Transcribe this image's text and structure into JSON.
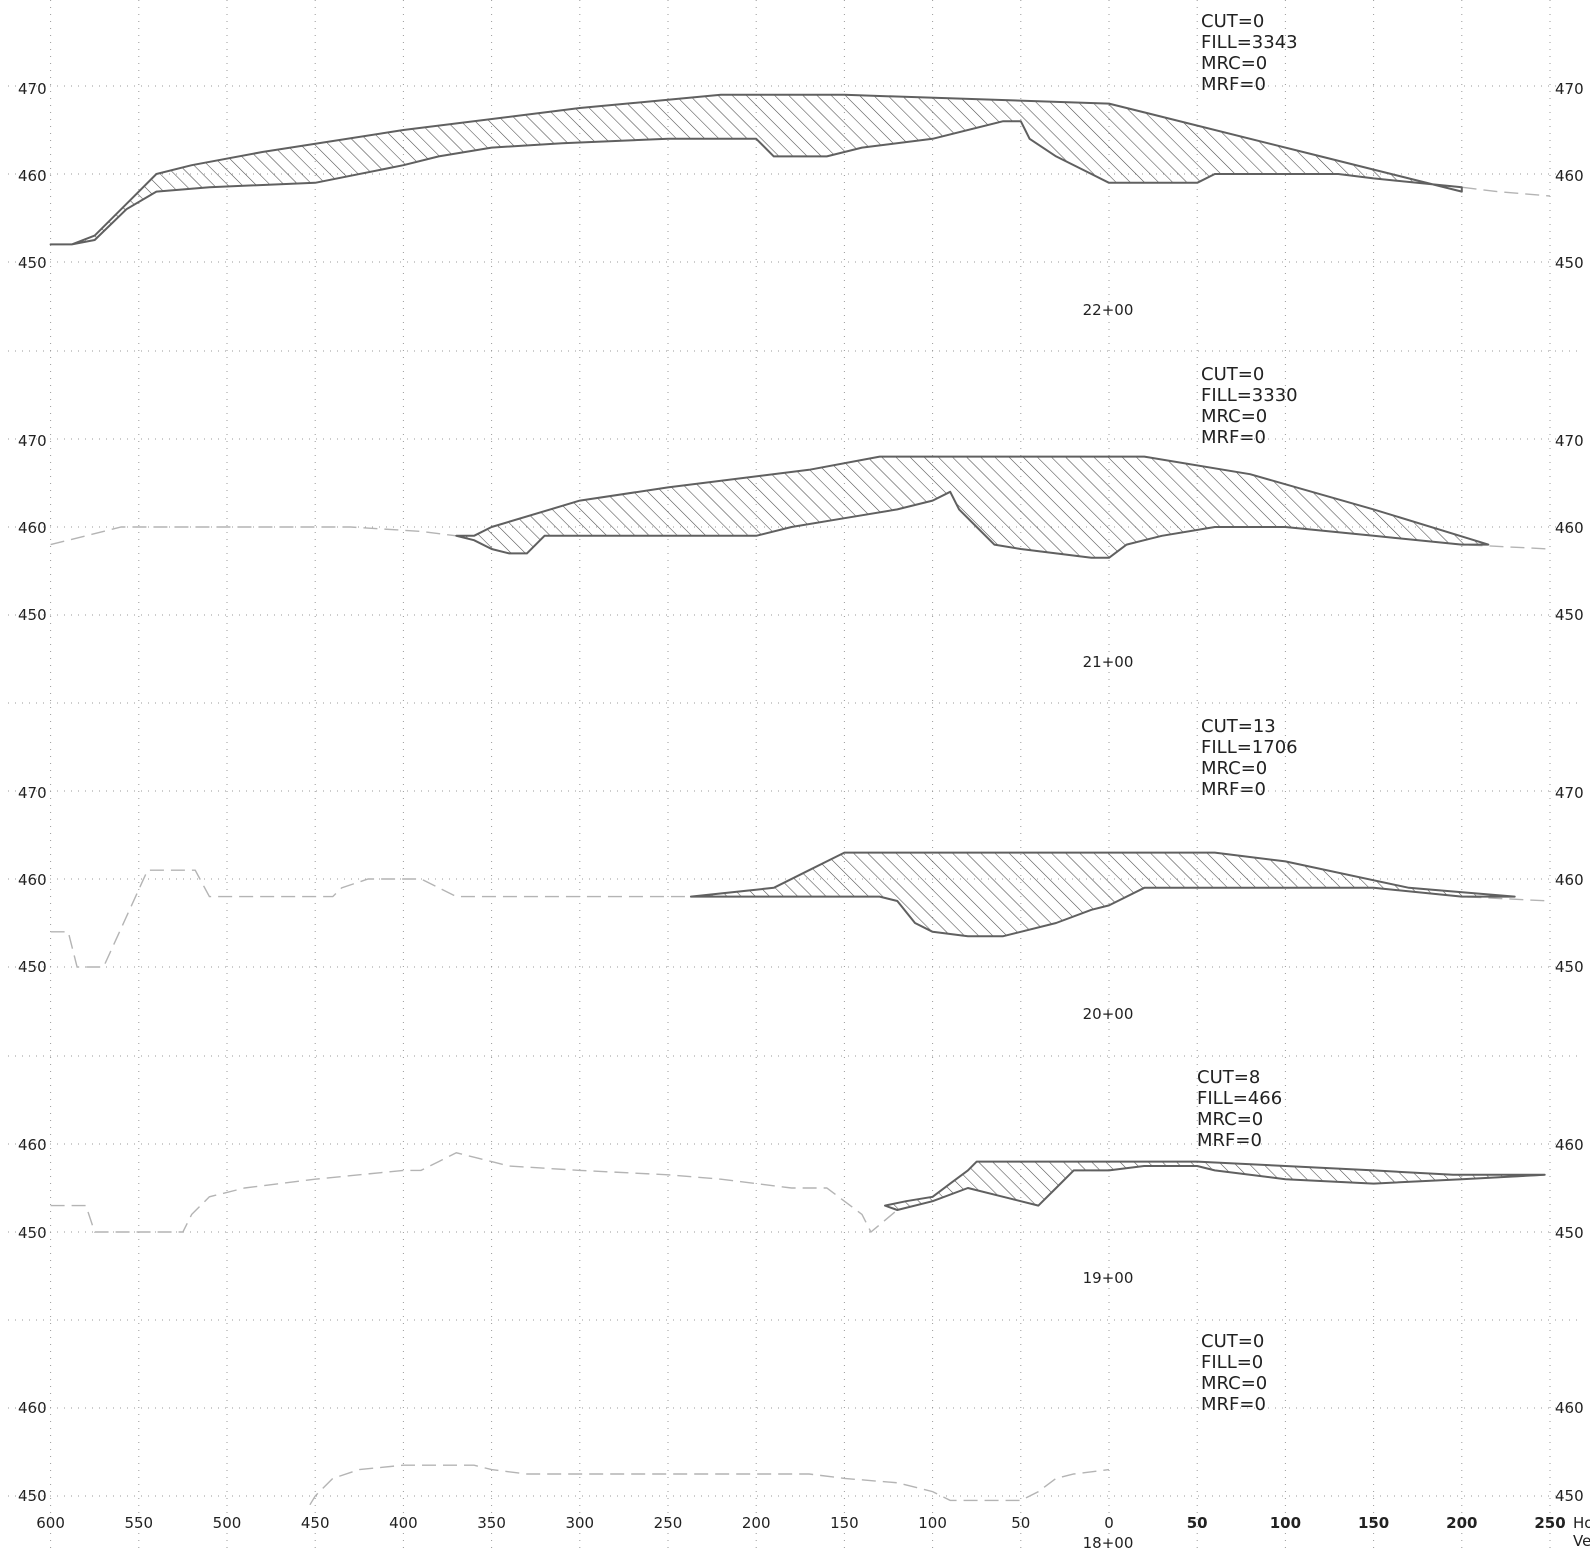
{
  "x_axis": {
    "tick_labels": [
      "600",
      "550",
      "500",
      "450",
      "400",
      "350",
      "300",
      "250",
      "200",
      "150",
      "100",
      "50",
      "0",
      "50",
      "100",
      "150",
      "200",
      "250"
    ],
    "trailing_text_1": "Ho",
    "trailing_text_2": "Ve"
  },
  "sections": [
    {
      "station": "22+00",
      "annotation": [
        "CUT=0",
        "FILL=3343",
        "MRC=0",
        "MRF=0"
      ],
      "y_labels": [
        "470",
        "460",
        "450"
      ],
      "elev_top": 480,
      "elev_bottom": 450,
      "existing_ground": [
        [
          -600,
          452
        ],
        [
          -588,
          452
        ],
        [
          -575,
          452.5
        ],
        [
          -557,
          456
        ],
        [
          -540,
          458
        ],
        [
          -510,
          458.5
        ],
        [
          -450,
          459
        ],
        [
          -400,
          461
        ],
        [
          -380,
          462
        ],
        [
          -350,
          463
        ],
        [
          -310,
          463.5
        ],
        [
          -250,
          464
        ],
        [
          -200,
          464
        ],
        [
          -190,
          462
        ],
        [
          -160,
          462
        ],
        [
          -140,
          463
        ],
        [
          -100,
          464
        ],
        [
          -60,
          466
        ],
        [
          -50,
          466
        ],
        [
          -45,
          464
        ],
        [
          -30,
          462
        ],
        [
          -10,
          460
        ],
        [
          0,
          459
        ],
        [
          20,
          459
        ],
        [
          50,
          459
        ],
        [
          60,
          460
        ],
        [
          80,
          460
        ],
        [
          130,
          460
        ],
        [
          150,
          459.5
        ],
        [
          200,
          458.5
        ],
        [
          220,
          458
        ],
        [
          250,
          457.5
        ]
      ],
      "finished_grade": [
        [
          -600,
          452
        ],
        [
          -588,
          452
        ],
        [
          -575,
          453
        ],
        [
          -540,
          460
        ],
        [
          -520,
          461
        ],
        [
          -480,
          462.5
        ],
        [
          -400,
          465
        ],
        [
          -300,
          467.5
        ],
        [
          -220,
          469
        ],
        [
          -150,
          469
        ],
        [
          0,
          468
        ],
        [
          20,
          467
        ],
        [
          120,
          462
        ],
        [
          160,
          460
        ],
        [
          200,
          458
        ]
      ]
    },
    {
      "station": "21+00",
      "annotation": [
        "CUT=0",
        "FILL=3330",
        "MRC=0",
        "MRF=0"
      ],
      "y_labels": [
        "470",
        "460",
        "450"
      ],
      "elev_top": 480,
      "elev_bottom": 450,
      "existing_ground": [
        [
          -600,
          458
        ],
        [
          -560,
          460
        ],
        [
          -540,
          460
        ],
        [
          -450,
          460
        ],
        [
          -430,
          460
        ],
        [
          -390,
          459.5
        ],
        [
          -370,
          459
        ],
        [
          -360,
          458.5
        ],
        [
          -350,
          457.5
        ],
        [
          -340,
          457
        ],
        [
          -330,
          457
        ],
        [
          -320,
          459
        ],
        [
          -250,
          459
        ],
        [
          -200,
          459
        ],
        [
          -180,
          460
        ],
        [
          -150,
          461
        ],
        [
          -120,
          462
        ],
        [
          -100,
          463
        ],
        [
          -90,
          464
        ],
        [
          -85,
          462
        ],
        [
          -75,
          460
        ],
        [
          -65,
          458
        ],
        [
          -50,
          457.5
        ],
        [
          -30,
          457
        ],
        [
          -10,
          456.5
        ],
        [
          0,
          456.5
        ],
        [
          10,
          458
        ],
        [
          30,
          459
        ],
        [
          60,
          460
        ],
        [
          100,
          460
        ],
        [
          150,
          459
        ],
        [
          200,
          458
        ],
        [
          250,
          457.5
        ]
      ],
      "finished_grade": [
        [
          -370,
          459
        ],
        [
          -360,
          459
        ],
        [
          -350,
          460
        ],
        [
          -300,
          463
        ],
        [
          -250,
          464.5
        ],
        [
          -170,
          466.5
        ],
        [
          -130,
          468
        ],
        [
          -100,
          468
        ],
        [
          0,
          468
        ],
        [
          20,
          468
        ],
        [
          80,
          466
        ],
        [
          150,
          462
        ],
        [
          215,
          458
        ]
      ]
    },
    {
      "station": "20+00",
      "annotation": [
        "CUT=13",
        "FILL=1706",
        "MRC=0",
        "MRF=0"
      ],
      "y_labels": [
        "470",
        "460",
        "450"
      ],
      "elev_top": 480,
      "elev_bottom": 450,
      "existing_ground": [
        [
          -600,
          454
        ],
        [
          -590,
          454
        ],
        [
          -585,
          450
        ],
        [
          -575,
          450
        ],
        [
          -570,
          450
        ],
        [
          -545,
          461
        ],
        [
          -530,
          461
        ],
        [
          -518,
          461
        ],
        [
          -510,
          458
        ],
        [
          -490,
          458
        ],
        [
          -450,
          458
        ],
        [
          -440,
          458
        ],
        [
          -435,
          459
        ],
        [
          -420,
          460
        ],
        [
          -400,
          460
        ],
        [
          -390,
          460
        ],
        [
          -380,
          459
        ],
        [
          -370,
          458
        ],
        [
          -300,
          458
        ],
        [
          -250,
          458
        ],
        [
          -200,
          458
        ],
        [
          -180,
          458
        ],
        [
          -160,
          458
        ],
        [
          -130,
          458
        ],
        [
          -120,
          457.5
        ],
        [
          -110,
          455
        ],
        [
          -100,
          454
        ],
        [
          -80,
          453.5
        ],
        [
          -60,
          453.5
        ],
        [
          -50,
          454
        ],
        [
          -30,
          455
        ],
        [
          -10,
          456.5
        ],
        [
          0,
          457
        ],
        [
          20,
          459
        ],
        [
          50,
          459
        ],
        [
          100,
          459
        ],
        [
          150,
          459
        ],
        [
          200,
          458
        ],
        [
          250,
          457.5
        ]
      ],
      "finished_grade": [
        [
          -237,
          458
        ],
        [
          -190,
          459
        ],
        [
          -170,
          461
        ],
        [
          -155,
          462.5
        ],
        [
          -150,
          463
        ],
        [
          -100,
          463
        ],
        [
          0,
          463
        ],
        [
          60,
          463
        ],
        [
          100,
          462
        ],
        [
          170,
          459
        ],
        [
          230,
          458
        ]
      ]
    },
    {
      "station": "19+00",
      "annotation": [
        "CUT=8",
        "FILL=466",
        "MRC=0",
        "MRF=0"
      ],
      "y_labels": [
        "460",
        "450"
      ],
      "elev_top": 470,
      "elev_bottom": 450,
      "existing_ground": [
        [
          -600,
          453
        ],
        [
          -590,
          453
        ],
        [
          -580,
          453
        ],
        [
          -575,
          450
        ],
        [
          -560,
          450
        ],
        [
          -550,
          450
        ],
        [
          -525,
          450
        ],
        [
          -520,
          452
        ],
        [
          -510,
          454
        ],
        [
          -490,
          455
        ],
        [
          -450,
          456
        ],
        [
          -400,
          457
        ],
        [
          -390,
          457
        ],
        [
          -380,
          458
        ],
        [
          -370,
          459
        ],
        [
          -360,
          458.5
        ],
        [
          -350,
          458
        ],
        [
          -340,
          457.5
        ],
        [
          -300,
          457
        ],
        [
          -250,
          456.5
        ],
        [
          -220,
          456
        ],
        [
          -200,
          455.5
        ],
        [
          -180,
          455
        ],
        [
          -160,
          455
        ],
        [
          -140,
          452
        ],
        [
          -135,
          450
        ],
        [
          -120,
          452.5
        ],
        [
          -100,
          453.5
        ],
        [
          -80,
          455
        ],
        [
          -60,
          454
        ],
        [
          -40,
          453
        ],
        [
          -30,
          455
        ],
        [
          -20,
          457
        ],
        [
          0,
          457
        ],
        [
          20,
          457.5
        ],
        [
          30,
          457.5
        ],
        [
          50,
          457.5
        ],
        [
          60,
          457
        ],
        [
          100,
          456
        ],
        [
          150,
          455.5
        ],
        [
          200,
          456
        ],
        [
          250,
          456.5
        ]
      ],
      "finished_grade": [
        [
          -127,
          453
        ],
        [
          -115,
          453.5
        ],
        [
          -100,
          454
        ],
        [
          -90,
          455.5
        ],
        [
          -80,
          457
        ],
        [
          -75,
          458
        ],
        [
          -30,
          458
        ],
        [
          0,
          458
        ],
        [
          20,
          458
        ],
        [
          50,
          458
        ],
        [
          100,
          457.5
        ],
        [
          150,
          457
        ],
        [
          195,
          456.5
        ],
        [
          247,
          456.5
        ]
      ]
    },
    {
      "station": "18+00",
      "annotation": [
        "CUT=0",
        "FILL=0",
        "MRC=0",
        "MRF=0"
      ],
      "y_labels": [
        "460",
        "450"
      ],
      "elev_top": 470,
      "elev_bottom": 450,
      "existing_ground": [
        [
          -453,
          449
        ],
        [
          -450,
          450
        ],
        [
          -440,
          452
        ],
        [
          -425,
          453
        ],
        [
          -400,
          453.5
        ],
        [
          -380,
          453.5
        ],
        [
          -360,
          453.5
        ],
        [
          -350,
          453
        ],
        [
          -330,
          452.5
        ],
        [
          -300,
          452.5
        ],
        [
          -200,
          452.5
        ],
        [
          -170,
          452.5
        ],
        [
          -150,
          452
        ],
        [
          -120,
          451.5
        ],
        [
          -100,
          450.5
        ],
        [
          -90,
          449.5
        ],
        [
          -50,
          449.5
        ],
        [
          -40,
          450.5
        ],
        [
          -30,
          452
        ],
        [
          -20,
          452.5
        ],
        [
          0,
          453
        ]
      ]
    }
  ]
}
